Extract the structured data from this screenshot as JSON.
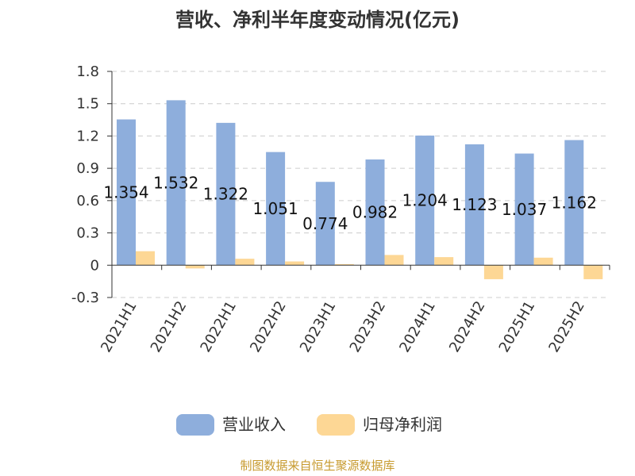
{
  "chart_data": {
    "type": "bar",
    "title": "营收、净利半年度变动情况(亿元)",
    "categories": [
      "2021H1",
      "2021H2",
      "2022H1",
      "2022H2",
      "2023H1",
      "2023H2",
      "2024H1",
      "2024H2",
      "2025H1",
      "2025H2"
    ],
    "series": [
      {
        "name": "营业收入",
        "color": "#8eaedc",
        "values": [
          1.354,
          1.532,
          1.322,
          1.051,
          0.774,
          0.982,
          1.204,
          1.123,
          1.037,
          1.162
        ],
        "value_labels": [
          "1.354",
          "1.532",
          "1.322",
          "1.051",
          "0.774",
          "0.982",
          "1.204",
          "1.123",
          "1.037",
          "1.162"
        ]
      },
      {
        "name": "归母净利润",
        "color": "#fdd795",
        "values": [
          0.13,
          -0.03,
          0.06,
          0.035,
          0.01,
          0.095,
          0.075,
          -0.13,
          0.07,
          -0.13
        ]
      }
    ],
    "ylim": [
      -0.3,
      1.8
    ],
    "yticks": [
      "1.8",
      "1.5",
      "1.2",
      "0.9",
      "0.6",
      "0.3",
      "0",
      "-0.3"
    ],
    "grid": true,
    "legend_position": "bottom-center",
    "source": "制图数据来自恒生聚源数据库"
  }
}
